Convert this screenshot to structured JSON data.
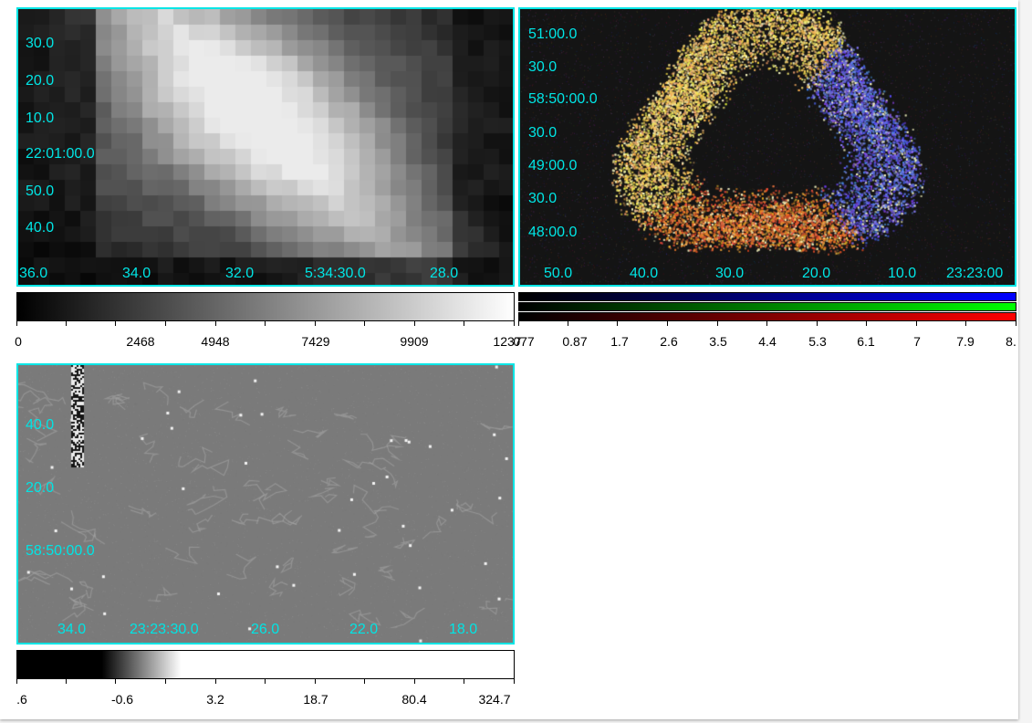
{
  "frames": [
    {
      "id": "optical",
      "colormap": "grey",
      "y_labels": [
        "30.0",
        "20.0",
        "10.0",
        "22:01:00.0",
        "50.0",
        "40.0"
      ],
      "x_labels": [
        "36.0",
        "34.0",
        "32.0",
        "5:34:30.0",
        "28.0"
      ]
    },
    {
      "id": "xray-rgb",
      "colormap": "rgb",
      "y_labels": [
        "51:00.0",
        "30.0",
        "58:50:00.0",
        "30.0",
        "49:00.0",
        "30.0",
        "48:00.0"
      ],
      "x_labels": [
        "50.0",
        "40.0",
        "30.0",
        "20.0",
        "10.0",
        "23:23:00"
      ]
    },
    {
      "id": "infrared",
      "colormap": "grey",
      "y_labels": [
        "40.0",
        "20.0",
        "58:50:00.0"
      ],
      "x_labels": [
        "34.0",
        "23:23:30.0",
        "26.0",
        "22.0",
        "18.0"
      ]
    }
  ],
  "colorbars": [
    {
      "id": "colorbar-optical",
      "scale": "linear",
      "labels": [
        "0",
        "2468",
        "4948",
        "7429",
        "9909",
        "1237"
      ]
    },
    {
      "id": "colorbar-rgb",
      "scale": "linear",
      "labels": [
        "077",
        "0.87",
        "1.7",
        "2.6",
        "3.5",
        "4.4",
        "5.3",
        "6.1",
        "7",
        "7.9",
        "8."
      ],
      "colors": [
        "#0000ff",
        "#00ff00",
        "#ff0000"
      ]
    },
    {
      "id": "colorbar-infrared",
      "scale": "log",
      "labels": [
        ".6",
        "-0.6",
        "3.2",
        "18.7",
        "80.4",
        "324.7"
      ]
    }
  ],
  "colors": {
    "wcs_grid": "#00e5e5",
    "frame_border": "#00e5e5",
    "background": "#ffffff"
  }
}
